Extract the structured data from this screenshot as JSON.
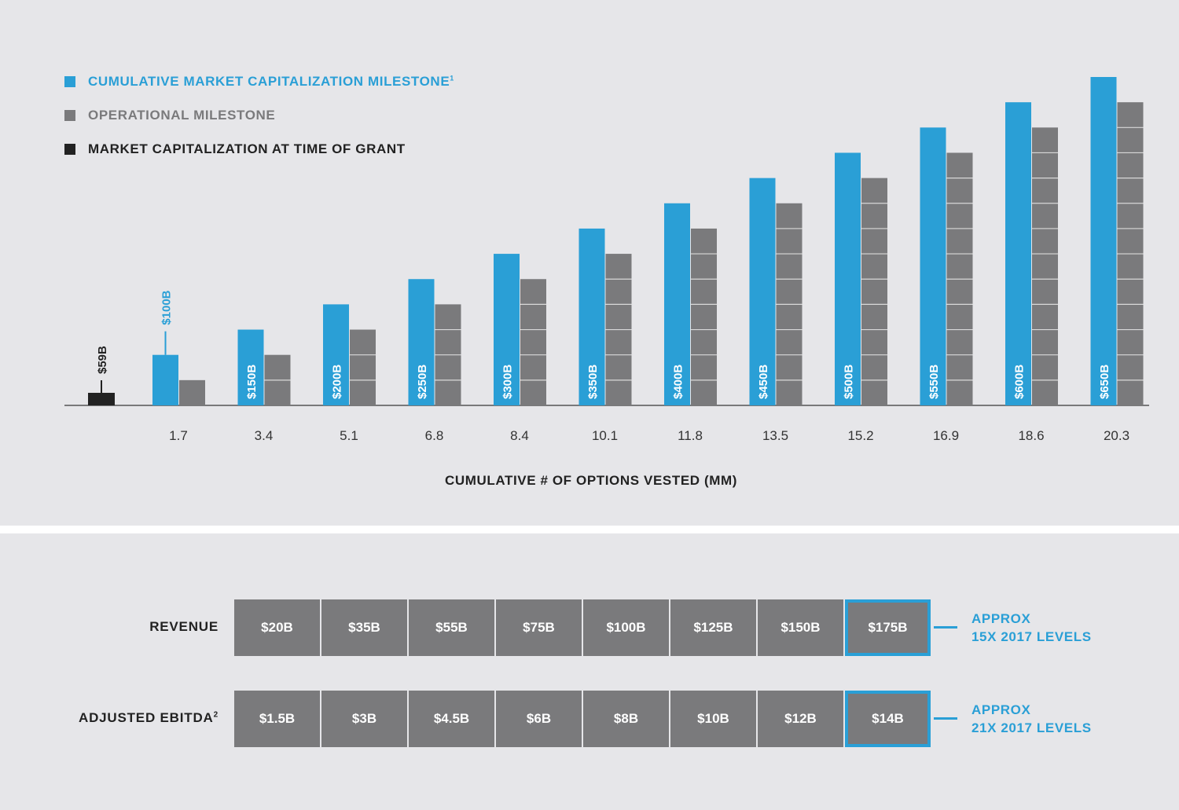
{
  "legend": {
    "market_cap_milestone": "CUMULATIVE MARKET CAPITALIZATION MILESTONE",
    "market_cap_milestone_sup": "1",
    "operational_milestone": "OPERATIONAL MILESTONE",
    "grant_market_cap": "MARKET CAPITALIZATION AT TIME OF GRANT"
  },
  "colors": {
    "blue": "#2a9fd6",
    "gray": "#7a7a7c",
    "black": "#222222",
    "background": "#e6e6e9"
  },
  "chart_data": {
    "type": "bar",
    "xlabel": "CUMULATIVE # OF OPTIONS VESTED (MM)",
    "categories": [
      "1.7",
      "3.4",
      "5.1",
      "6.8",
      "8.4",
      "10.1",
      "11.8",
      "13.5",
      "15.2",
      "16.9",
      "18.6",
      "20.3"
    ],
    "grant": {
      "label": "$59B",
      "value": 59
    },
    "series": [
      {
        "name": "CUMULATIVE MARKET CAPITALIZATION MILESTONE",
        "values": [
          100,
          150,
          200,
          250,
          300,
          350,
          400,
          450,
          500,
          550,
          600,
          650
        ],
        "labels": [
          "$100B",
          "$150B",
          "$200B",
          "$250B",
          "$300B",
          "$350B",
          "$400B",
          "$450B",
          "$500B",
          "$550B",
          "$600B",
          "$650B"
        ]
      },
      {
        "name": "OPERATIONAL MILESTONE",
        "values": [
          1,
          2,
          3,
          4,
          5,
          6,
          7,
          8,
          9,
          10,
          11,
          12
        ]
      }
    ],
    "grid": false,
    "legend_position": "top-left"
  },
  "table": {
    "rows": [
      {
        "label": "REVENUE",
        "sup": "",
        "cells": [
          "$20B",
          "$35B",
          "$55B",
          "$75B",
          "$100B",
          "$125B",
          "$150B",
          "$175B"
        ],
        "note_line1": "APPROX",
        "note_line2": "15X 2017 LEVELS"
      },
      {
        "label": "ADJUSTED EBITDA",
        "sup": "2",
        "cells": [
          "$1.5B",
          "$3B",
          "$4.5B",
          "$6B",
          "$8B",
          "$10B",
          "$12B",
          "$14B"
        ],
        "note_line1": "APPROX",
        "note_line2": "21X 2017 LEVELS"
      }
    ]
  }
}
